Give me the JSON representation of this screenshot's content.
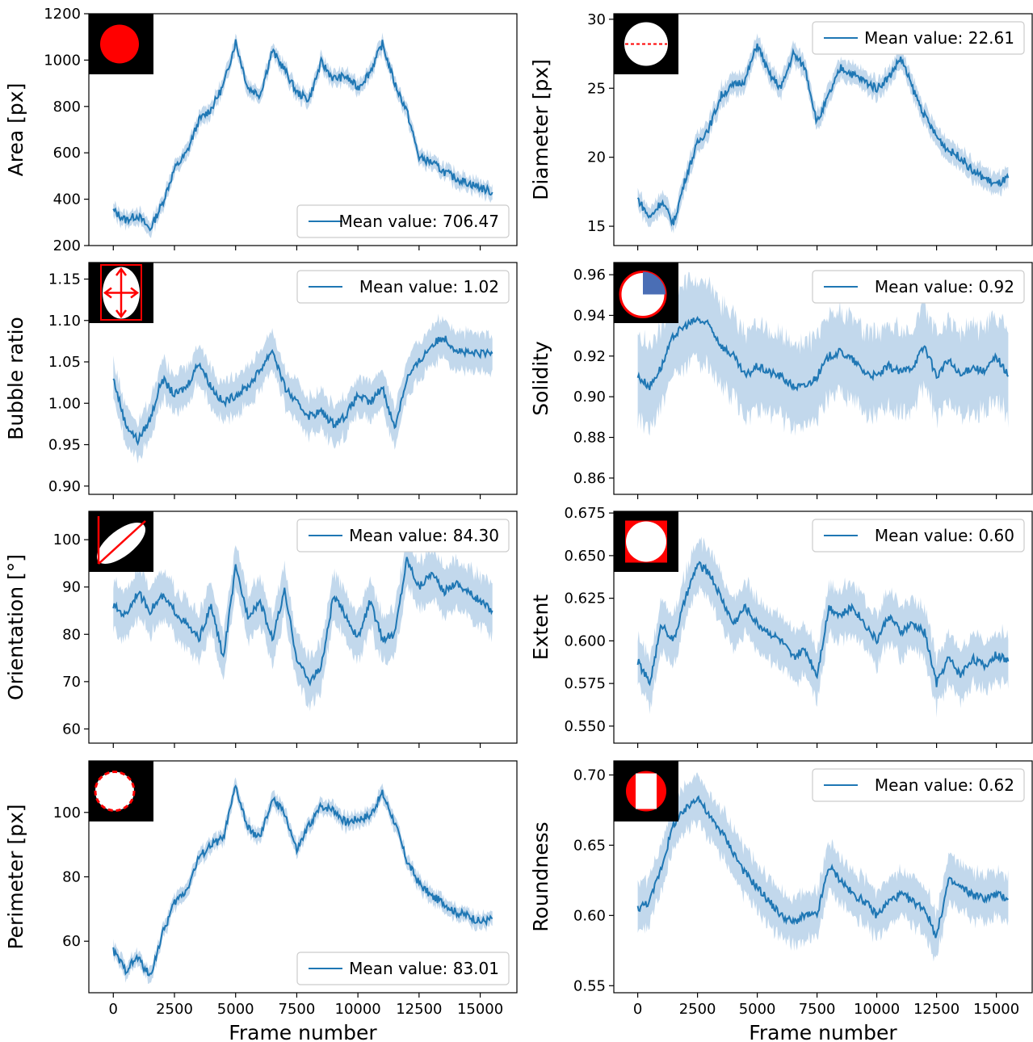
{
  "colors": {
    "line": "#1f77b4",
    "band": "#aecbe6",
    "icon_background": "#000000",
    "icon_red": "#ff0000",
    "icon_blue": "#4a6eb5"
  },
  "shared_x": {
    "xlabel": "Frame number",
    "xlim": [
      -1000,
      16500
    ],
    "ticks": [
      0,
      2500,
      5000,
      7500,
      10000,
      12500,
      15000
    ],
    "tick_labels": [
      "0",
      "2500",
      "5000",
      "7500",
      "10000",
      "12500",
      "15000"
    ]
  },
  "chart_data": [
    {
      "type": "line",
      "ylabel": "Area [px]",
      "ylim": [
        200,
        1200
      ],
      "yticks": [
        200,
        400,
        600,
        800,
        1000,
        1200
      ],
      "ytick_labels": [
        "200",
        "400",
        "600",
        "800",
        "1000",
        "1200"
      ],
      "legend": "Mean value: 706.47",
      "legend_position": "lower-right",
      "icon": "filled-circle-icon",
      "band_width": 35,
      "series": [
        {
          "x": [
            0,
            500,
            1000,
            1500,
            2000,
            2500,
            3000,
            3500,
            4000,
            4500,
            5000,
            5500,
            6000,
            6500,
            7000,
            7500,
            8000,
            8500,
            9000,
            9500,
            10000,
            10500,
            11000,
            11500,
            12000,
            12500,
            13000,
            13500,
            14000,
            14500,
            15000,
            15500
          ],
          "values": [
            350,
            310,
            330,
            270,
            380,
            530,
            600,
            740,
            790,
            890,
            1080,
            880,
            850,
            1040,
            960,
            860,
            830,
            990,
            920,
            930,
            880,
            950,
            1070,
            900,
            780,
            580,
            560,
            520,
            490,
            470,
            450,
            430
          ]
        }
      ]
    },
    {
      "type": "line",
      "ylabel": "Diameter [px]",
      "ylim": [
        13.6,
        30.4
      ],
      "yticks": [
        15,
        20,
        25,
        30
      ],
      "ytick_labels": [
        "15",
        "20",
        "25",
        "30"
      ],
      "legend": "Mean value: 22.61",
      "legend_position": "upper-right",
      "icon": "diameter-circle-icon",
      "band_width": 0.8,
      "series": [
        {
          "x": [
            0,
            500,
            1000,
            1500,
            2000,
            2500,
            3000,
            3500,
            4000,
            4500,
            5000,
            5500,
            6000,
            6500,
            7000,
            7500,
            8000,
            8500,
            9000,
            9500,
            10000,
            10500,
            11000,
            11500,
            12000,
            12500,
            13000,
            13500,
            14000,
            14500,
            15000,
            15500
          ],
          "values": [
            17.0,
            15.6,
            16.8,
            15.2,
            18.5,
            21.0,
            22.2,
            24.5,
            25.2,
            25.6,
            28.2,
            26.0,
            25.0,
            27.5,
            26.5,
            22.5,
            24.5,
            26.5,
            26.0,
            25.5,
            25.0,
            25.8,
            27.2,
            25.0,
            23.0,
            21.5,
            20.5,
            20.0,
            19.0,
            18.5,
            18.0,
            18.5
          ]
        }
      ]
    },
    {
      "type": "line",
      "ylabel": "Bubble ratio",
      "ylim": [
        0.89,
        1.17
      ],
      "yticks": [
        0.9,
        0.95,
        1.0,
        1.05,
        1.1,
        1.15
      ],
      "ytick_labels": [
        "0.90",
        "0.95",
        "1.00",
        "1.05",
        "1.10",
        "1.15"
      ],
      "legend": "Mean value: 1.02",
      "legend_position": "upper-right",
      "icon": "ellipse-axes-icon",
      "band_width": 0.025,
      "series": [
        {
          "x": [
            0,
            500,
            1000,
            1500,
            2000,
            2500,
            3000,
            3500,
            4000,
            4500,
            5000,
            5500,
            6000,
            6500,
            7000,
            7500,
            8000,
            8500,
            9000,
            9500,
            10000,
            10500,
            11000,
            11500,
            12000,
            12500,
            13000,
            13500,
            14000,
            14500,
            15000,
            15500
          ],
          "values": [
            1.03,
            0.975,
            0.955,
            0.98,
            1.03,
            1.01,
            1.02,
            1.05,
            1.02,
            1.0,
            1.01,
            1.02,
            1.04,
            1.065,
            1.02,
            1.0,
            0.985,
            0.99,
            0.975,
            0.985,
            1.01,
            1.0,
            1.02,
            0.97,
            1.03,
            1.05,
            1.07,
            1.08,
            1.065,
            1.06,
            1.06,
            1.06
          ]
        }
      ]
    },
    {
      "type": "line",
      "ylabel": "Solidity",
      "ylim": [
        0.852,
        0.966
      ],
      "yticks": [
        0.86,
        0.88,
        0.9,
        0.92,
        0.94,
        0.96
      ],
      "ytick_labels": [
        "0.86",
        "0.88",
        "0.90",
        "0.92",
        "0.94",
        "0.96"
      ],
      "legend": "Mean value: 0.92",
      "legend_position": "upper-right",
      "icon": "solidity-circle-icon",
      "band_width": 0.022,
      "series": [
        {
          "x": [
            0,
            500,
            1000,
            1500,
            2000,
            2500,
            3000,
            3500,
            4000,
            4500,
            5000,
            5500,
            6000,
            6500,
            7000,
            7500,
            8000,
            8500,
            9000,
            9500,
            10000,
            10500,
            11000,
            11500,
            12000,
            12500,
            13000,
            13500,
            14000,
            14500,
            15000,
            15500
          ],
          "values": [
            0.91,
            0.905,
            0.915,
            0.93,
            0.935,
            0.938,
            0.935,
            0.925,
            0.92,
            0.91,
            0.915,
            0.912,
            0.91,
            0.905,
            0.905,
            0.91,
            0.92,
            0.922,
            0.918,
            0.912,
            0.91,
            0.915,
            0.912,
            0.915,
            0.925,
            0.91,
            0.918,
            0.91,
            0.915,
            0.912,
            0.92,
            0.91
          ]
        }
      ]
    },
    {
      "type": "line",
      "ylabel": "Orientation [°]",
      "ylim": [
        57,
        106
      ],
      "yticks": [
        60,
        70,
        80,
        90,
        100
      ],
      "ytick_labels": [
        "60",
        "70",
        "80",
        "90",
        "100"
      ],
      "legend": "Mean value: 84.30",
      "legend_position": "upper-right",
      "icon": "orientation-ellipse-icon",
      "band_width": 5.5,
      "series": [
        {
          "x": [
            0,
            500,
            1000,
            1500,
            2000,
            2500,
            3000,
            3500,
            4000,
            4500,
            5000,
            5500,
            6000,
            6500,
            7000,
            7500,
            8000,
            8500,
            9000,
            9500,
            10000,
            10500,
            11000,
            11500,
            12000,
            12500,
            13000,
            13500,
            14000,
            14500,
            15000,
            15500
          ],
          "values": [
            86,
            84,
            89,
            85,
            88,
            85,
            82,
            79,
            86,
            75,
            94,
            84,
            87,
            79,
            89,
            75,
            70,
            73,
            88,
            84,
            79,
            87,
            79,
            80,
            96,
            90,
            93,
            89,
            91,
            89,
            87,
            85
          ]
        }
      ]
    },
    {
      "type": "line",
      "ylabel": "Extent",
      "ylim": [
        0.54,
        0.676
      ],
      "yticks": [
        0.55,
        0.575,
        0.6,
        0.625,
        0.65,
        0.675
      ],
      "ytick_labels": [
        "0.550",
        "0.575",
        "0.600",
        "0.625",
        "0.650",
        "0.675"
      ],
      "legend": "Mean value: 0.60",
      "legend_position": "upper-right",
      "icon": "extent-square-icon",
      "band_width": 0.016,
      "series": [
        {
          "x": [
            0,
            500,
            1000,
            1500,
            2000,
            2500,
            3000,
            3500,
            4000,
            4500,
            5000,
            5500,
            6000,
            6500,
            7000,
            7500,
            8000,
            8500,
            9000,
            9500,
            10000,
            10500,
            11000,
            11500,
            12000,
            12500,
            13000,
            13500,
            14000,
            14500,
            15000,
            15500
          ],
          "values": [
            0.588,
            0.575,
            0.61,
            0.6,
            0.625,
            0.645,
            0.64,
            0.625,
            0.61,
            0.62,
            0.61,
            0.605,
            0.6,
            0.59,
            0.595,
            0.58,
            0.62,
            0.615,
            0.62,
            0.61,
            0.6,
            0.615,
            0.605,
            0.61,
            0.605,
            0.575,
            0.59,
            0.58,
            0.59,
            0.585,
            0.592,
            0.588
          ]
        }
      ]
    },
    {
      "type": "line",
      "ylabel": "Perimeter [px]",
      "ylim": [
        44,
        116
      ],
      "yticks": [
        60,
        80,
        100
      ],
      "ytick_labels": [
        "60",
        "80",
        "100"
      ],
      "legend": "Mean value: 83.01",
      "legend_position": "lower-right",
      "icon": "dashed-perimeter-circle-icon",
      "band_width": 2.5,
      "series": [
        {
          "x": [
            0,
            500,
            1000,
            1500,
            2000,
            2500,
            3000,
            3500,
            4000,
            4500,
            5000,
            5500,
            6000,
            6500,
            7000,
            7500,
            8000,
            8500,
            9000,
            9500,
            10000,
            10500,
            11000,
            11500,
            12000,
            12500,
            13000,
            13500,
            14000,
            14500,
            15000,
            15500
          ],
          "values": [
            57,
            51,
            55,
            49,
            62,
            72,
            76,
            86,
            90,
            92,
            108,
            95,
            92,
            104,
            100,
            88,
            96,
            102,
            101,
            97,
            98,
            99,
            106,
            97,
            85,
            78,
            74,
            72,
            69,
            68,
            66,
            67
          ]
        }
      ]
    },
    {
      "type": "line",
      "ylabel": "Roundness",
      "ylim": [
        0.545,
        0.71
      ],
      "yticks": [
        0.55,
        0.6,
        0.65,
        0.7
      ],
      "ytick_labels": [
        "0.55",
        "0.60",
        "0.65",
        "0.70"
      ],
      "legend": "Mean value: 0.62",
      "legend_position": "upper-right",
      "icon": "roundness-square-icon",
      "band_width": 0.018,
      "series": [
        {
          "x": [
            0,
            500,
            1000,
            1500,
            2000,
            2500,
            3000,
            3500,
            4000,
            4500,
            5000,
            5500,
            6000,
            6500,
            7000,
            7500,
            8000,
            8500,
            9000,
            9500,
            10000,
            10500,
            11000,
            11500,
            12000,
            12500,
            13000,
            13500,
            14000,
            14500,
            15000,
            15500
          ],
          "values": [
            0.605,
            0.61,
            0.635,
            0.665,
            0.675,
            0.685,
            0.67,
            0.66,
            0.645,
            0.63,
            0.62,
            0.61,
            0.6,
            0.595,
            0.6,
            0.6,
            0.635,
            0.625,
            0.615,
            0.61,
            0.6,
            0.61,
            0.615,
            0.61,
            0.605,
            0.585,
            0.625,
            0.62,
            0.615,
            0.612,
            0.615,
            0.612
          ]
        }
      ]
    }
  ]
}
